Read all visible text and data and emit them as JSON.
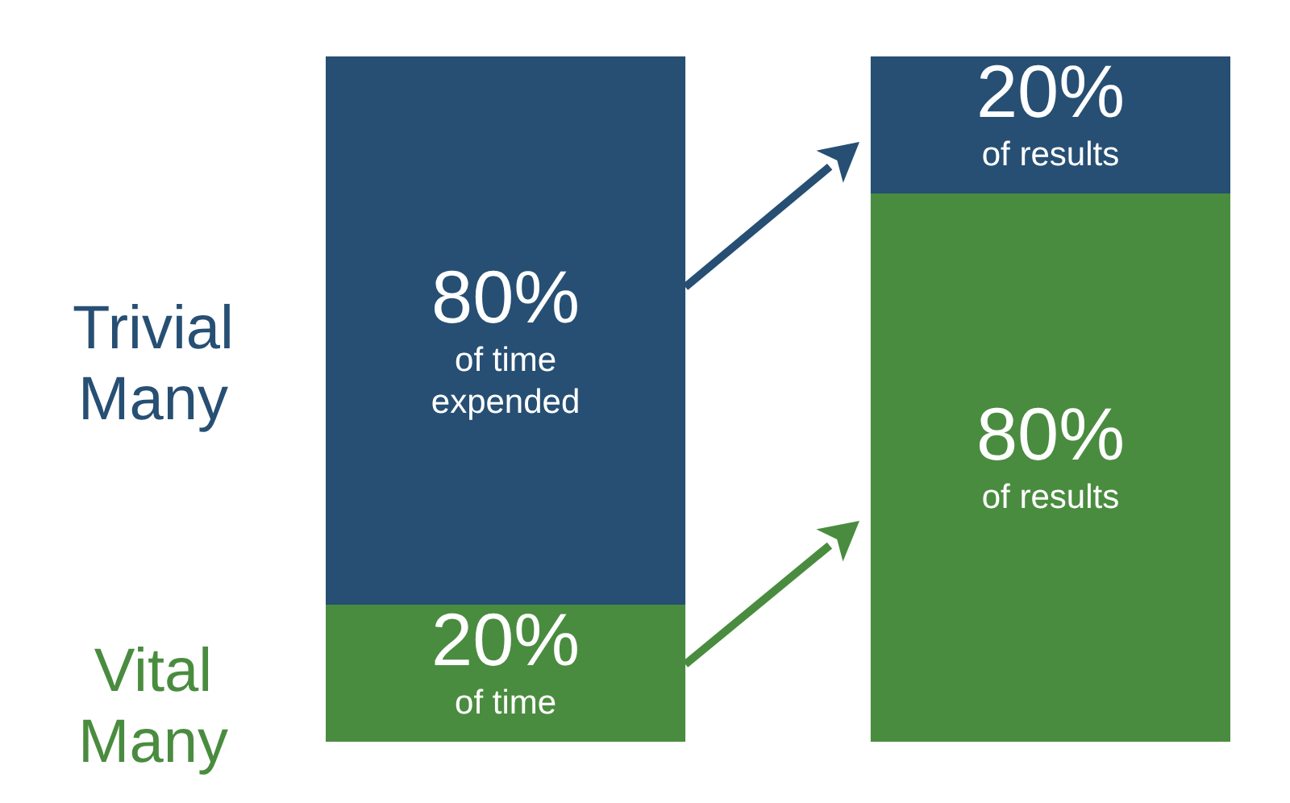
{
  "chart_data": {
    "type": "bar",
    "stacked": true,
    "categories": [
      null,
      null
    ],
    "series": [
      {
        "name": "Vital Many",
        "color": "#4a8c3f",
        "values": [
          20,
          80
        ],
        "value_labels": [
          "20%\nof time",
          "80%\nof results"
        ]
      },
      {
        "name": "Trivial Many",
        "color": "#264f73",
        "values": [
          80,
          20
        ],
        "value_labels": [
          "80%\nof time\nexpended",
          "20%\nof results"
        ]
      }
    ]
  }
}
